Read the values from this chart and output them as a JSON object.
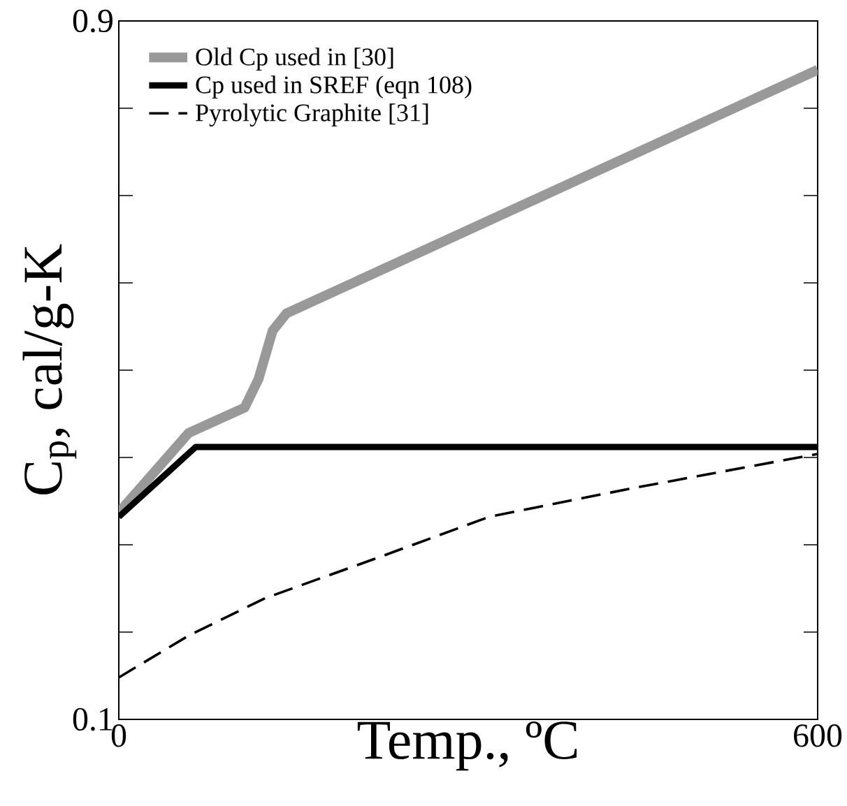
{
  "chart_data": {
    "type": "line",
    "xlabel": "Temp., ºC",
    "ylabel": "C$_{p}$, cal/g-K",
    "xlim": [
      0,
      600
    ],
    "ylim": [
      0.1,
      0.9
    ],
    "xticks": [
      0,
      600
    ],
    "yticks": [
      0.1,
      {
        "value": 0.2,
        "label": null
      },
      {
        "value": 0.3,
        "label": null
      },
      {
        "value": 0.4,
        "label": null
      },
      {
        "value": 0.5,
        "label": null
      },
      {
        "value": 0.6,
        "label": null
      },
      {
        "value": 0.7,
        "label": null
      },
      {
        "value": 0.8,
        "label": null
      },
      0.9
    ],
    "legend": "top left",
    "grid": false,
    "marker": "none",
    "series": [
      {
        "name": "Old Cp used in [30]",
        "color": "#999999",
        "line_style": "solid",
        "x": [
          0,
          60,
          108,
          120,
          132,
          144,
          600
        ],
        "values": [
          0.337,
          0.428,
          0.457,
          0.49,
          0.545,
          0.565,
          0.844
        ]
      },
      {
        "name": "Cp used in SREF (eqn 108)",
        "color": "#000000",
        "line_style": "solid",
        "x": [
          0,
          66,
          600
        ],
        "values": [
          0.332,
          0.412,
          0.412
        ]
      },
      {
        "name": "Pyrolytic Graphite [31]",
        "color": "#000000",
        "line_style": "dashed",
        "x": [
          0,
          60,
          126,
          222,
          318,
          438,
          600
        ],
        "values": [
          0.148,
          0.196,
          0.239,
          0.285,
          0.332,
          0.364,
          0.404
        ]
      }
    ]
  }
}
